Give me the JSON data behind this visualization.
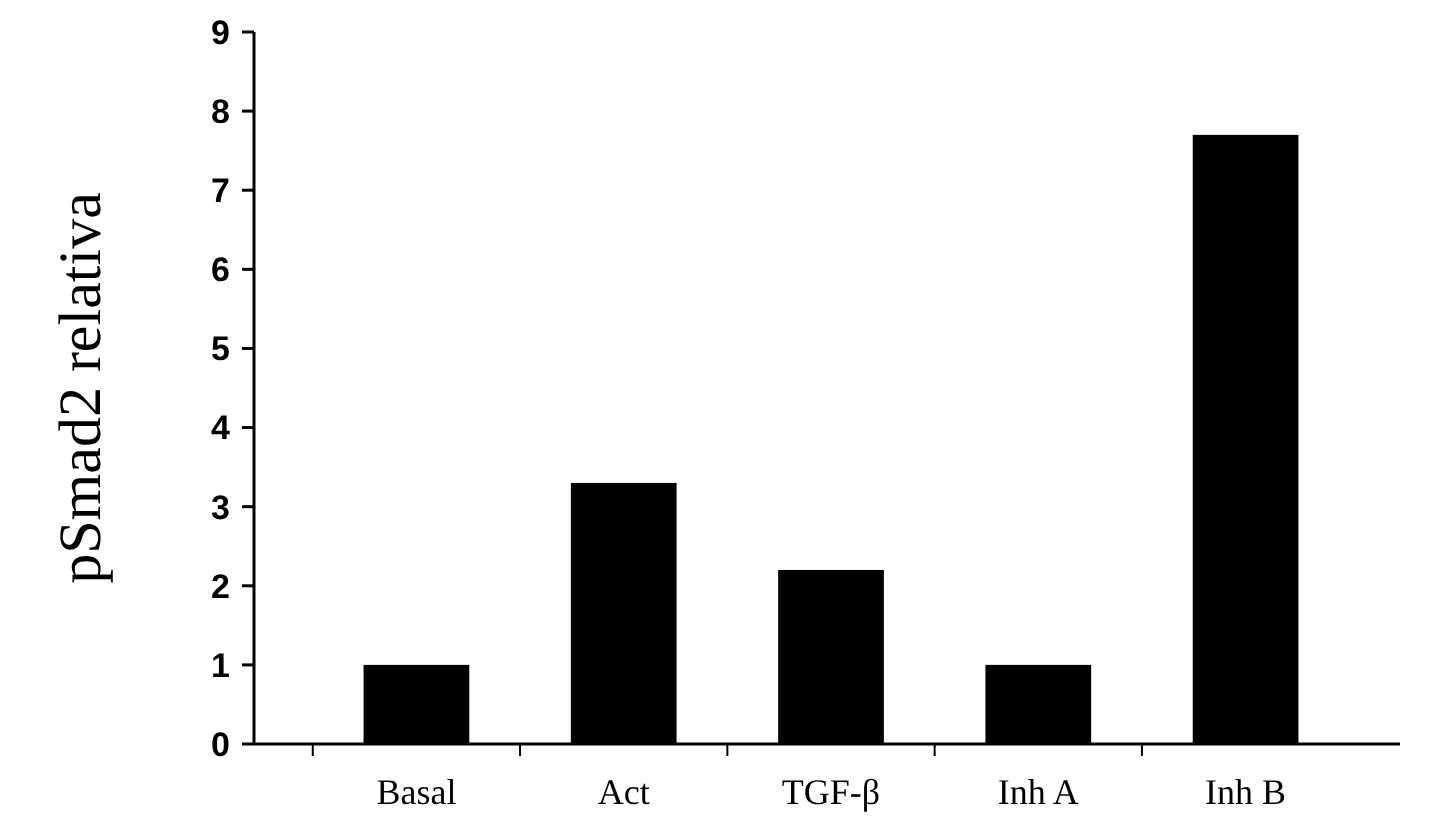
{
  "chart_data": {
    "type": "bar",
    "ylabel": "pSmad2 relativa",
    "categories": [
      "Basal",
      "Act",
      "TGF-β",
      "Inh A",
      "Inh B"
    ],
    "values": [
      1.0,
      3.3,
      2.2,
      1.0,
      7.7
    ],
    "color": "#000000",
    "ylim": [
      0,
      9
    ],
    "yticks": [
      0,
      1,
      2,
      3,
      4,
      5,
      6,
      7,
      8,
      9
    ],
    "grid": false
  }
}
